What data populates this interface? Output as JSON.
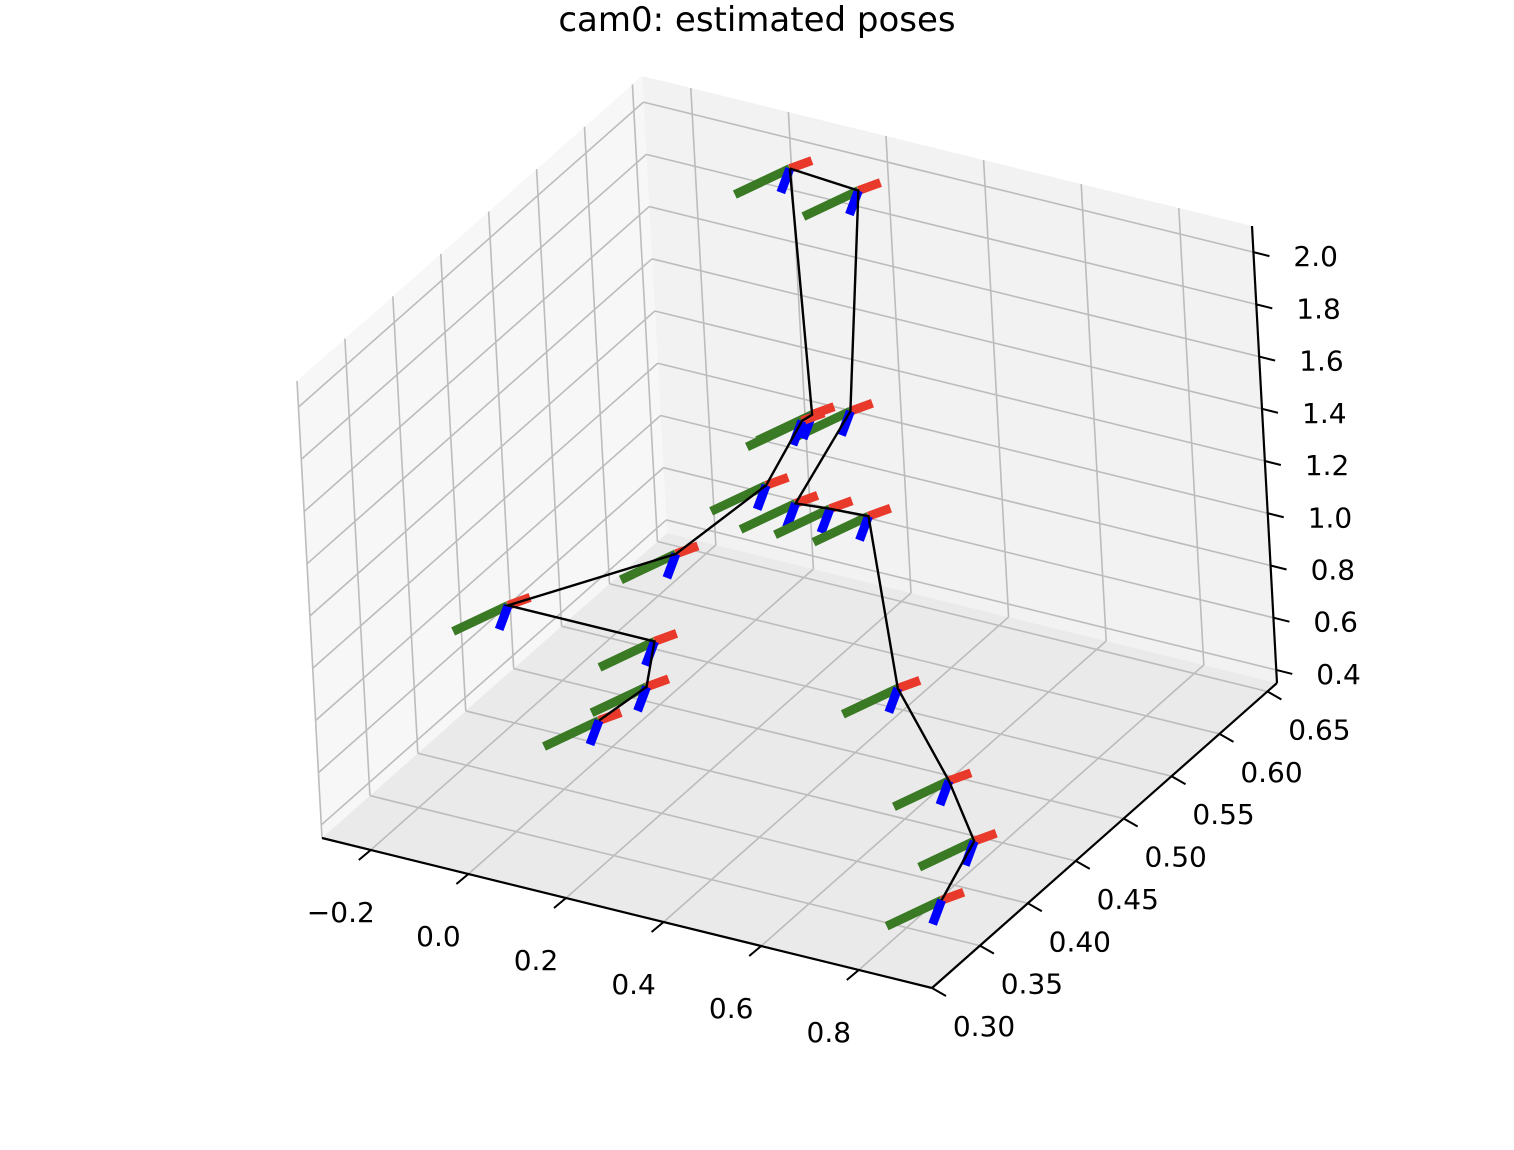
{
  "chart_data": {
    "type": "3d-line",
    "title": "cam0: estimated poses",
    "xlabel": "",
    "ylabel": "",
    "zlabel": "",
    "grid": true,
    "xlim": [
      -0.3,
      0.95
    ],
    "ylim": [
      0.3,
      0.66
    ],
    "zlim": [
      0.35,
      2.1
    ],
    "x_ticks": [
      -0.2,
      0.0,
      0.2,
      0.4,
      0.6,
      0.8
    ],
    "x_tick_labels": [
      "−0.2",
      "0.0",
      "0.2",
      "0.4",
      "0.6",
      "0.8"
    ],
    "y_ticks": [
      0.3,
      0.35,
      0.4,
      0.45,
      0.5,
      0.55,
      0.6,
      0.65
    ],
    "y_tick_labels": [
      "0.30",
      "0.35",
      "0.40",
      "0.45",
      "0.50",
      "0.55",
      "0.60",
      "0.65"
    ],
    "z_ticks": [
      0.4,
      0.6,
      0.8,
      1.0,
      1.2,
      1.4,
      1.6,
      1.8,
      2.0
    ],
    "z_tick_labels": [
      "0.4",
      "0.6",
      "0.8",
      "1.0",
      "1.2",
      "1.4",
      "1.6",
      "1.8",
      "2.0"
    ],
    "series": [
      {
        "kind": "trajectory",
        "color": "#000000",
        "points": [
          [
            0.08,
            0.62,
            2.05
          ],
          [
            0.22,
            0.62,
            2.03
          ],
          [
            0.22,
            0.6,
            1.25
          ],
          [
            0.2,
            0.55,
            1.05
          ],
          [
            0.25,
            0.56,
            1.02
          ],
          [
            0.35,
            0.55,
            1.07
          ],
          [
            0.6,
            0.45,
            0.85
          ],
          [
            0.8,
            0.4,
            0.75
          ],
          [
            0.95,
            0.35,
            0.75
          ],
          [
            0.98,
            0.3,
            0.7
          ]
        ]
      },
      {
        "kind": "trajectory",
        "color": "#000000",
        "points": [
          [
            0.08,
            0.62,
            2.05
          ],
          [
            0.14,
            0.6,
            1.2
          ],
          [
            0.16,
            0.58,
            1.25
          ],
          [
            0.12,
            0.56,
            1.05
          ],
          [
            0.05,
            0.5,
            0.95
          ],
          [
            -0.2,
            0.45,
            0.8
          ],
          [
            0.1,
            0.45,
            0.8
          ],
          [
            0.12,
            0.43,
            0.7
          ],
          [
            0.08,
            0.4,
            0.65
          ]
        ]
      }
    ],
    "pose_axis_colors": {
      "x_axis": "#e8392a",
      "y_axis": "#3a7a24",
      "z_axis": "#0000ff"
    }
  }
}
